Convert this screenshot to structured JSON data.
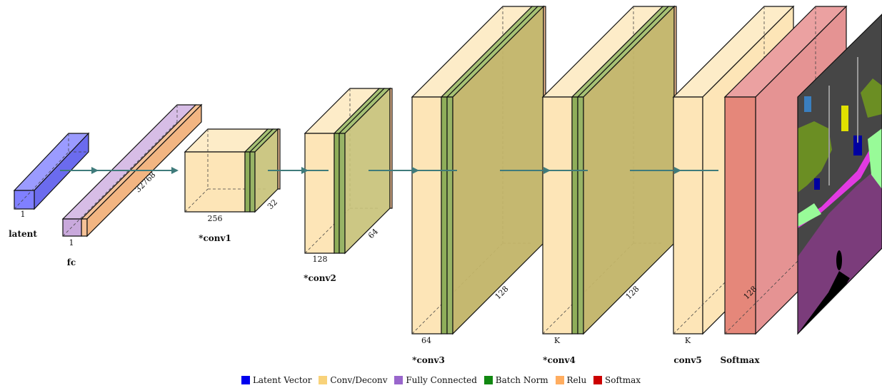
{
  "colors": {
    "latent": "#8080ff",
    "conv": "#fde5b7",
    "fc": "#c9a9dc",
    "bn": "#8fae5a",
    "relu": "#f5c297",
    "softmax": "#e5877a",
    "arrow": "#3f7b7b"
  },
  "blocks": {
    "latent": {
      "caption": "latent",
      "dims": [
        "1"
      ]
    },
    "fc": {
      "caption": "fc",
      "dims": [
        "1",
        "32768"
      ]
    },
    "conv1": {
      "caption": "*conv1",
      "dims": [
        "256",
        "32"
      ]
    },
    "conv2": {
      "caption": "*conv2",
      "dims": [
        "128",
        "64"
      ]
    },
    "conv3": {
      "caption": "*conv3",
      "dims": [
        "64",
        "128"
      ]
    },
    "conv4": {
      "caption": "*conv4",
      "dims": [
        "K",
        "128"
      ]
    },
    "conv5": {
      "caption": "conv5",
      "dims": [
        "K"
      ]
    },
    "softmax": {
      "caption": "Softmax",
      "dims": [
        "128"
      ]
    }
  },
  "legend": [
    {
      "label": "Latent Vector",
      "color": "#0000ee"
    },
    {
      "label": "Conv/Deconv",
      "color": "#f8d27a"
    },
    {
      "label": "Fully Connected",
      "color": "#9966cc"
    },
    {
      "label": "Batch Norm",
      "color": "#118811"
    },
    {
      "label": "Relu",
      "color": "#ffad60"
    },
    {
      "label": "Softmax",
      "color": "#cc0000"
    }
  ],
  "output_image": {
    "icon": "segmentation-map-image"
  }
}
